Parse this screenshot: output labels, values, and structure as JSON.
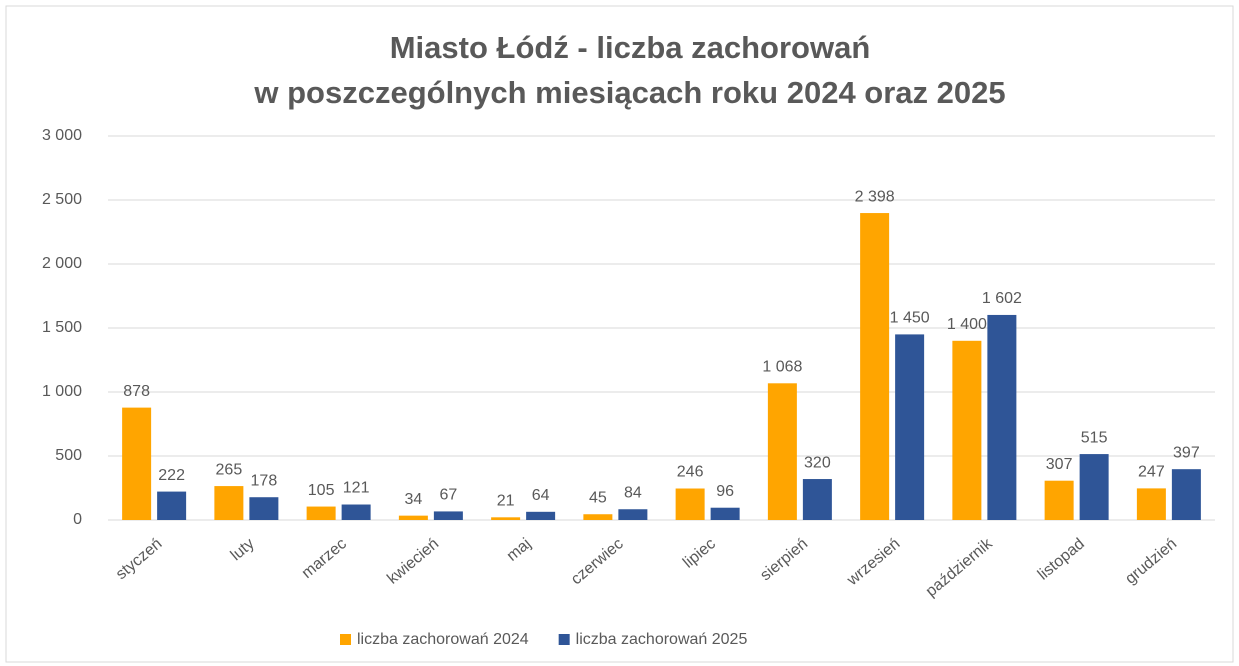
{
  "chart_data": {
    "type": "bar",
    "title": [
      "Miasto Łódź - liczba zachorowań",
      "w poszczególnych miesiącach roku 2024 oraz 2025"
    ],
    "categories": [
      "styczeń",
      "luty",
      "marzec",
      "kwiecień",
      "maj",
      "czerwiec",
      "lipiec",
      "sierpień",
      "wrzesień",
      "październik",
      "listopad",
      "grudzień"
    ],
    "series": [
      {
        "name": "liczba zachorowań 2024",
        "color": "#ffa500",
        "values": [
          878,
          265,
          105,
          34,
          21,
          45,
          246,
          1068,
          2398,
          1400,
          307,
          247
        ],
        "value_labels": [
          "878",
          "265",
          "105",
          "34",
          "21",
          "45",
          "246",
          "1 068",
          "2 398",
          "1 400",
          "307",
          "247"
        ]
      },
      {
        "name": "liczba zachorowań 2025",
        "color": "#2f5597",
        "values": [
          222,
          178,
          121,
          67,
          64,
          84,
          96,
          320,
          1450,
          1602,
          515,
          397
        ],
        "value_labels": [
          "222",
          "178",
          "121",
          "67",
          "64",
          "84",
          "96",
          "320",
          "1 450",
          "1 602",
          "515",
          "397"
        ]
      }
    ],
    "ylim": [
      0,
      3000
    ],
    "yticks": [
      0,
      500,
      {
        "value": 1000,
        "label": "1 000"
      },
      {
        "value": 1500,
        "label": "1 500"
      },
      {
        "value": 2000,
        "label": "2 000"
      },
      {
        "value": 2500,
        "label": "2 500"
      },
      {
        "value": 3000,
        "label": "3 000"
      }
    ],
    "grid": true,
    "legend": "bottom"
  }
}
